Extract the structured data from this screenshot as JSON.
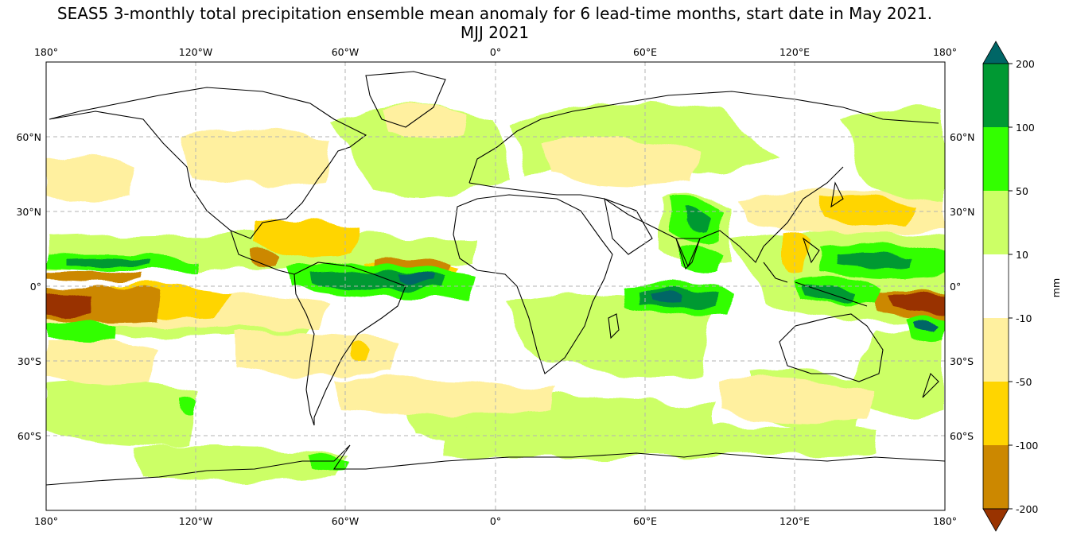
{
  "title": "SEAS5 3-monthly total precipitation ensemble mean anomaly for 6 lead-time months, start date in May 2021.",
  "subtitle": "MJJ 2021",
  "map": {
    "projection": "PlateCarree",
    "lon_ticks": [
      "180°",
      "120°W",
      "60°W",
      "0°",
      "60°E",
      "120°E",
      "180°"
    ],
    "lat_ticks": [
      "60°N",
      "30°N",
      "0°",
      "30°S",
      "60°S"
    ],
    "gridlines": true,
    "gridline_style": "dashed gray",
    "coastlines": true
  },
  "colorbar": {
    "label": "mm",
    "extend": "both",
    "levels": [
      "-200",
      "-100",
      "-50",
      "-10",
      "10",
      "50",
      "100",
      "200"
    ],
    "colors": {
      "below": "#993300",
      "-200_-100": "#cc8800",
      "-100_-50": "#ffd500",
      "-50_-10": "#fff09f",
      "-10_10": "#ffffff",
      "10_50": "#ccff66",
      "50_100": "#33ff00",
      "100_200": "#009933",
      "above": "#006666"
    }
  },
  "legend": {
    "below": "#993300",
    "c1": "#cc8800",
    "c2": "#ffd500",
    "c3": "#fff09f",
    "c4": "#ffffff",
    "c5": "#ccff66",
    "c6": "#33ff00",
    "c7": "#009933",
    "above": "#006666"
  }
}
